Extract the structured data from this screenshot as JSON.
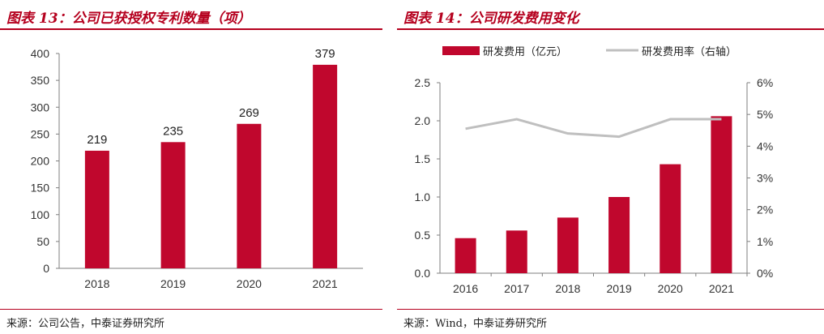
{
  "left": {
    "title": "图表 13：公司已获授权专利数量（项）",
    "source": "来源：公司公告，中泰证券研究所",
    "chart_data": {
      "type": "bar",
      "categories": [
        "2018",
        "2019",
        "2020",
        "2021"
      ],
      "values": [
        219,
        235,
        269,
        379
      ],
      "ylim": [
        0,
        400
      ],
      "yticks": [
        0,
        50,
        100,
        150,
        200,
        250,
        300,
        350,
        400
      ],
      "data_labels": true,
      "grid": false,
      "bar_color": "#c0072d"
    }
  },
  "right": {
    "title": "图表 14：公司研发费用变化",
    "source": "来源：Wind，中泰证券研究所",
    "chart_data": {
      "type": "bar",
      "categories": [
        "2016",
        "2017",
        "2018",
        "2019",
        "2020",
        "2021"
      ],
      "series": [
        {
          "name": "研发费用（亿元）",
          "type": "bar",
          "axis": "left",
          "values": [
            0.46,
            0.56,
            0.73,
            1.0,
            1.43,
            2.06
          ],
          "color": "#c0072d"
        },
        {
          "name": "研发费用率（右轴）",
          "type": "line",
          "axis": "right",
          "values": [
            4.55,
            4.85,
            4.4,
            4.3,
            4.85,
            4.85
          ],
          "color": "#bfbfbf"
        }
      ],
      "ylim_left": [
        0,
        2.5
      ],
      "yticks_left": [
        "0.0",
        "0.5",
        "1.0",
        "1.5",
        "2.0",
        "2.5"
      ],
      "ylim_right": [
        0,
        6
      ],
      "yticks_right": [
        "0%",
        "1%",
        "2%",
        "3%",
        "4%",
        "5%",
        "6%"
      ],
      "legend_position": "top",
      "grid": false
    }
  }
}
